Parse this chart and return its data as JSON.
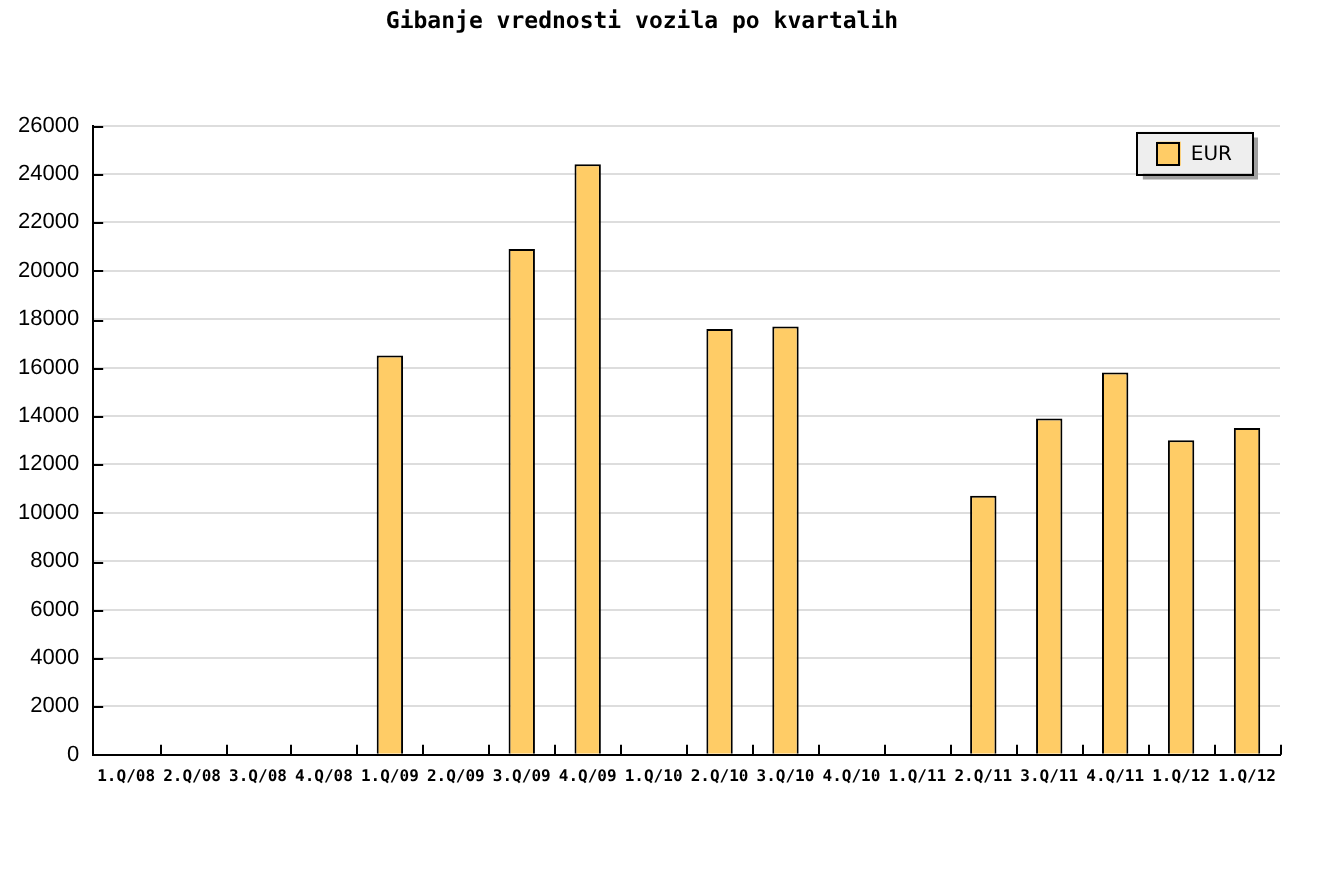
{
  "chart_data": {
    "type": "bar",
    "title": "Gibanje vrednosti vozila po kvartalih",
    "categories": [
      "1.Q/08",
      "2.Q/08",
      "3.Q/08",
      "4.Q/08",
      "1.Q/09",
      "2.Q/09",
      "3.Q/09",
      "4.Q/09",
      "1.Q/10",
      "2.Q/10",
      "3.Q/10",
      "4.Q/10",
      "1.Q/11",
      "2.Q/11",
      "3.Q/11",
      "4.Q/11",
      "1.Q/12",
      "1.Q/12"
    ],
    "series": [
      {
        "name": "EUR",
        "color": "#ffcc66",
        "values": [
          null,
          null,
          null,
          null,
          16500,
          null,
          20900,
          24400,
          null,
          17600,
          17700,
          null,
          null,
          10700,
          13900,
          15800,
          13000,
          13500
        ]
      }
    ],
    "ylim": [
      0,
      26000
    ],
    "yticks": [
      0,
      2000,
      4000,
      6000,
      8000,
      10000,
      12000,
      14000,
      16000,
      18000,
      20000,
      22000,
      24000,
      26000
    ],
    "grid": "y",
    "legend": "top right"
  }
}
